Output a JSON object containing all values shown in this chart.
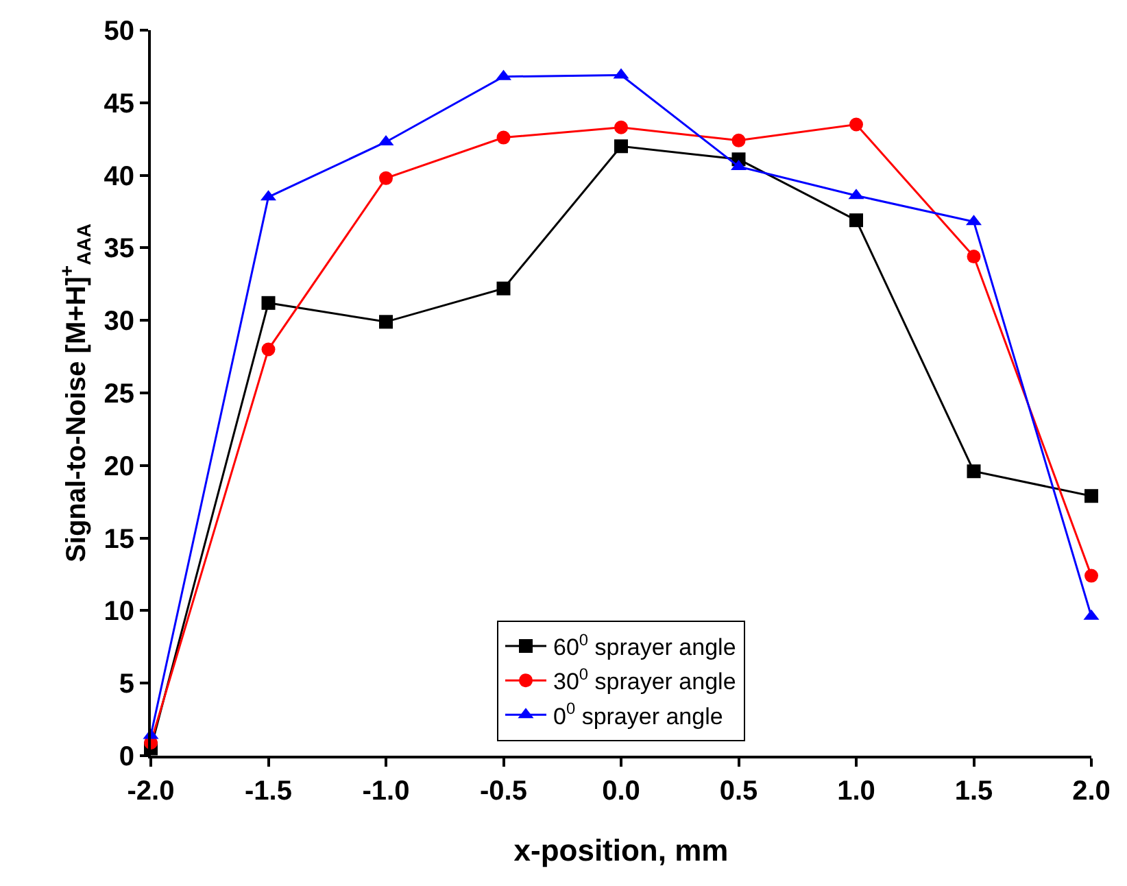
{
  "chart_data": {
    "type": "line",
    "xlabel": "x-position, mm",
    "ylabel": "Signal-to-Noise [M+H]$^{+}$$_{AAA}$",
    "x": [
      -2.0,
      -1.5,
      -1.0,
      -0.5,
      0.0,
      0.5,
      1.0,
      1.5,
      2.0
    ],
    "series": [
      {
        "name": "60$^{0}$ sprayer angle",
        "color": "#000000",
        "marker": "square",
        "values": [
          0.5,
          31.2,
          29.9,
          32.2,
          42.0,
          41.1,
          36.9,
          19.6,
          17.9
        ]
      },
      {
        "name": "30$^{0}$ sprayer angle",
        "color": "#ff0000",
        "marker": "circle",
        "values": [
          0.9,
          28.0,
          39.8,
          42.6,
          43.3,
          42.4,
          43.5,
          34.4,
          12.4
        ]
      },
      {
        "name": "0$^{0}$ sprayer angle",
        "color": "#0000ff",
        "marker": "triangle",
        "values": [
          1.4,
          38.5,
          42.3,
          46.8,
          46.9,
          40.6,
          38.6,
          36.8,
          9.6
        ]
      }
    ],
    "xlim": [
      -2.0,
      2.0
    ],
    "xticks": [
      {
        "value": -2.0,
        "label": "-2.0"
      },
      {
        "value": -1.5,
        "label": "-1.5"
      },
      {
        "value": -1.0,
        "label": "-1.0"
      },
      {
        "value": -0.5,
        "label": "-0.5"
      },
      {
        "value": 0.0,
        "label": "0.0"
      },
      {
        "value": 0.5,
        "label": "0.5"
      },
      {
        "value": 1.0,
        "label": "1.0"
      },
      {
        "value": 1.5,
        "label": "1.5"
      },
      {
        "value": 2.0,
        "label": "2.0"
      }
    ],
    "ylim": [
      0,
      50
    ],
    "yticks": [
      0,
      5,
      10,
      15,
      20,
      25,
      30,
      35,
      40,
      45,
      50
    ],
    "legend": "bottom",
    "line_style": "solid"
  }
}
